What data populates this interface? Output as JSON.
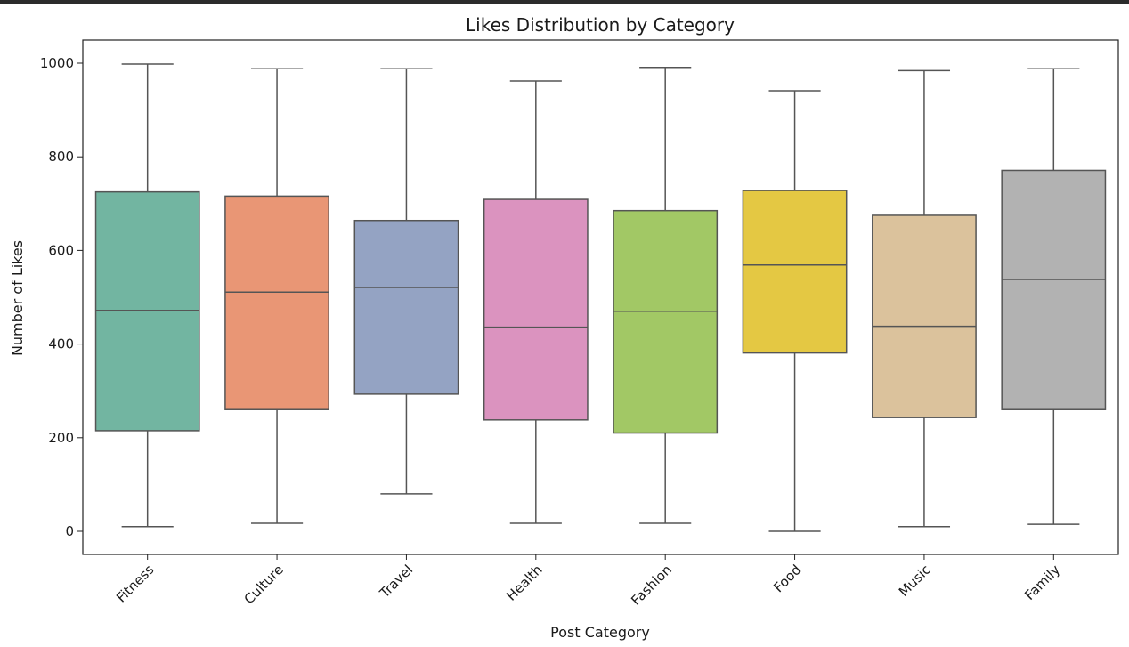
{
  "chart_data": {
    "type": "box",
    "title": "Likes Distribution by Category",
    "xlabel": "Post Category",
    "ylabel": "Number of Likes",
    "ylim": [
      -48,
      1050
    ],
    "yticks": [
      0,
      200,
      400,
      600,
      800,
      1000
    ],
    "grid": false,
    "categories": [
      "Fitness",
      "Culture",
      "Travel",
      "Health",
      "Fashion",
      "Food",
      "Music",
      "Family"
    ],
    "boxes": [
      {
        "category": "Fitness",
        "min": 10,
        "q1": 215,
        "median": 472,
        "q3": 725,
        "max": 998,
        "color": "#72b5a1"
      },
      {
        "category": "Culture",
        "min": 17,
        "q1": 260,
        "median": 511,
        "q3": 716,
        "max": 988,
        "color": "#e99675"
      },
      {
        "category": "Travel",
        "min": 80,
        "q1": 293,
        "median": 521,
        "q3": 664,
        "max": 988,
        "color": "#94a3c3"
      },
      {
        "category": "Health",
        "min": 17,
        "q1": 238,
        "median": 436,
        "q3": 709,
        "max": 962,
        "color": "#db93bf"
      },
      {
        "category": "Fashion",
        "min": 17,
        "q1": 210,
        "median": 470,
        "q3": 685,
        "max": 991,
        "color": "#a2c865"
      },
      {
        "category": "Food",
        "min": 0,
        "q1": 381,
        "median": 569,
        "q3": 728,
        "max": 941,
        "color": "#e4c843"
      },
      {
        "category": "Music",
        "min": 10,
        "q1": 243,
        "median": 438,
        "q3": 675,
        "max": 984,
        "color": "#dbc29c"
      },
      {
        "category": "Family",
        "min": 15,
        "q1": 260,
        "median": 538,
        "q3": 771,
        "max": 988,
        "color": "#b2b2b2"
      }
    ],
    "line_color": "#555555"
  }
}
